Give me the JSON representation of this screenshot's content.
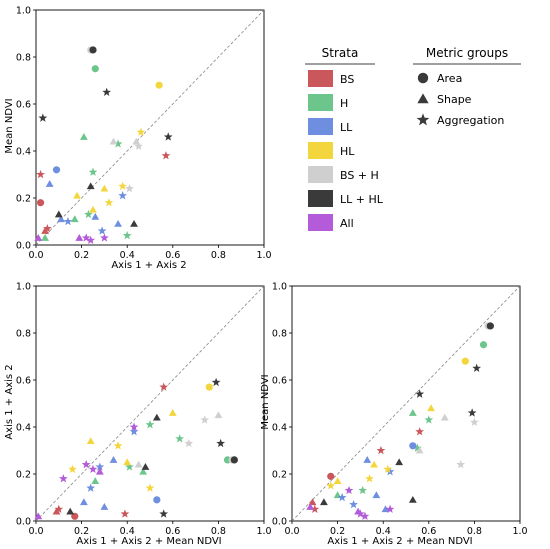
{
  "legend": {
    "strata_title": "Strata",
    "metric_title": "Metric groups",
    "strata": [
      {
        "key": "BS",
        "label": "BS",
        "color": "#c9575b"
      },
      {
        "key": "H",
        "label": "H",
        "color": "#6cc68b"
      },
      {
        "key": "LL",
        "label": "LL",
        "color": "#6e8ee0"
      },
      {
        "key": "HL",
        "label": "HL",
        "color": "#f3d63e"
      },
      {
        "key": "BSH",
        "label": "BS + H",
        "color": "#cfcfcf"
      },
      {
        "key": "LLHL",
        "label": "LL + HL",
        "color": "#3a3a3a"
      },
      {
        "key": "All",
        "label": "All",
        "color": "#b35bd8"
      }
    ],
    "metrics": [
      {
        "key": "area",
        "label": "Area",
        "icon": "circle-icon"
      },
      {
        "key": "shape",
        "label": "Shape",
        "icon": "triangle-icon"
      },
      {
        "key": "agg",
        "label": "Aggregation",
        "icon": "star-icon"
      }
    ]
  },
  "chart_data": [
    {
      "type": "scatter",
      "id": "panel-1",
      "xlabel": "Axis 1 + Axis 2",
      "ylabel": "Mean NDVI",
      "xlim": [
        0,
        1
      ],
      "ylim": [
        0,
        1
      ],
      "ticks": [
        "0.0",
        "0.2",
        "0.4",
        "0.6",
        "0.8",
        "1.0"
      ],
      "identity_line": true,
      "points": [
        {
          "s": "BS",
          "m": "area",
          "x": 0.02,
          "y": 0.18
        },
        {
          "s": "BS",
          "m": "agg",
          "x": 0.02,
          "y": 0.3
        },
        {
          "s": "BS",
          "m": "agg",
          "x": 0.05,
          "y": 0.07
        },
        {
          "s": "BS",
          "m": "agg",
          "x": 0.57,
          "y": 0.38
        },
        {
          "s": "BS",
          "m": "shape",
          "x": 0.04,
          "y": 0.06
        },
        {
          "s": "H",
          "m": "area",
          "x": 0.26,
          "y": 0.75
        },
        {
          "s": "H",
          "m": "shape",
          "x": 0.21,
          "y": 0.46
        },
        {
          "s": "H",
          "m": "shape",
          "x": 0.17,
          "y": 0.11
        },
        {
          "s": "H",
          "m": "shape",
          "x": 0.04,
          "y": 0.03
        },
        {
          "s": "H",
          "m": "agg",
          "x": 0.25,
          "y": 0.31
        },
        {
          "s": "H",
          "m": "agg",
          "x": 0.36,
          "y": 0.43
        },
        {
          "s": "H",
          "m": "agg",
          "x": 0.4,
          "y": 0.04
        },
        {
          "s": "H",
          "m": "agg",
          "x": 0.23,
          "y": 0.13
        },
        {
          "s": "LL",
          "m": "area",
          "x": 0.09,
          "y": 0.32
        },
        {
          "s": "LL",
          "m": "shape",
          "x": 0.06,
          "y": 0.26
        },
        {
          "s": "LL",
          "m": "shape",
          "x": 0.11,
          "y": 0.11
        },
        {
          "s": "LL",
          "m": "shape",
          "x": 0.26,
          "y": 0.12
        },
        {
          "s": "LL",
          "m": "shape",
          "x": 0.36,
          "y": 0.09
        },
        {
          "s": "LL",
          "m": "agg",
          "x": 0.14,
          "y": 0.1
        },
        {
          "s": "LL",
          "m": "agg",
          "x": 0.38,
          "y": 0.21
        },
        {
          "s": "LL",
          "m": "agg",
          "x": 0.29,
          "y": 0.06
        },
        {
          "s": "HL",
          "m": "area",
          "x": 0.54,
          "y": 0.68
        },
        {
          "s": "HL",
          "m": "shape",
          "x": 0.3,
          "y": 0.24
        },
        {
          "s": "HL",
          "m": "shape",
          "x": 0.25,
          "y": 0.15
        },
        {
          "s": "HL",
          "m": "shape",
          "x": 0.18,
          "y": 0.21
        },
        {
          "s": "HL",
          "m": "agg",
          "x": 0.38,
          "y": 0.25
        },
        {
          "s": "HL",
          "m": "agg",
          "x": 0.32,
          "y": 0.18
        },
        {
          "s": "HL",
          "m": "agg",
          "x": 0.46,
          "y": 0.48
        },
        {
          "s": "BSH",
          "m": "area",
          "x": 0.24,
          "y": 0.83
        },
        {
          "s": "BSH",
          "m": "shape",
          "x": 0.44,
          "y": 0.44
        },
        {
          "s": "BSH",
          "m": "shape",
          "x": 0.34,
          "y": 0.44
        },
        {
          "s": "BSH",
          "m": "agg",
          "x": 0.41,
          "y": 0.24
        },
        {
          "s": "BSH",
          "m": "agg",
          "x": 0.45,
          "y": 0.42
        },
        {
          "s": "LLHL",
          "m": "area",
          "x": 0.25,
          "y": 0.83
        },
        {
          "s": "LLHL",
          "m": "shape",
          "x": 0.24,
          "y": 0.25
        },
        {
          "s": "LLHL",
          "m": "shape",
          "x": 0.43,
          "y": 0.09
        },
        {
          "s": "LLHL",
          "m": "shape",
          "x": 0.1,
          "y": 0.13
        },
        {
          "s": "LLHL",
          "m": "agg",
          "x": 0.03,
          "y": 0.54
        },
        {
          "s": "LLHL",
          "m": "agg",
          "x": 0.31,
          "y": 0.65
        },
        {
          "s": "LLHL",
          "m": "agg",
          "x": 0.58,
          "y": 0.46
        },
        {
          "s": "All",
          "m": "shape",
          "x": 0.19,
          "y": 0.03
        },
        {
          "s": "All",
          "m": "shape",
          "x": 0.01,
          "y": 0.03
        },
        {
          "s": "All",
          "m": "agg",
          "x": 0.22,
          "y": 0.03
        },
        {
          "s": "All",
          "m": "agg",
          "x": 0.24,
          "y": 0.02
        },
        {
          "s": "All",
          "m": "agg",
          "x": 0.3,
          "y": 0.03
        }
      ]
    },
    {
      "type": "scatter",
      "id": "panel-2",
      "xlabel": "Axis 1 + Axis 2 + Mean NDVI",
      "ylabel": "Axis 1 + Axis 2",
      "xlim": [
        0,
        1
      ],
      "ylim": [
        0,
        1
      ],
      "ticks": [
        "0.0",
        "0.2",
        "0.4",
        "0.6",
        "0.8",
        "1.0"
      ],
      "identity_line": true,
      "points": [
        {
          "s": "BS",
          "m": "area",
          "x": 0.17,
          "y": 0.02
        },
        {
          "s": "BS",
          "m": "agg",
          "x": 0.56,
          "y": 0.57
        },
        {
          "s": "BS",
          "m": "agg",
          "x": 0.39,
          "y": 0.03
        },
        {
          "s": "BS",
          "m": "agg",
          "x": 0.1,
          "y": 0.05
        },
        {
          "s": "BS",
          "m": "shape",
          "x": 0.09,
          "y": 0.04
        },
        {
          "s": "H",
          "m": "area",
          "x": 0.84,
          "y": 0.26
        },
        {
          "s": "H",
          "m": "shape",
          "x": 0.47,
          "y": 0.21
        },
        {
          "s": "H",
          "m": "shape",
          "x": 0.26,
          "y": 0.17
        },
        {
          "s": "H",
          "m": "agg",
          "x": 0.5,
          "y": 0.41
        },
        {
          "s": "H",
          "m": "agg",
          "x": 0.63,
          "y": 0.35
        },
        {
          "s": "H",
          "m": "agg",
          "x": 0.41,
          "y": 0.23
        },
        {
          "s": "LL",
          "m": "area",
          "x": 0.53,
          "y": 0.09
        },
        {
          "s": "LL",
          "m": "shape",
          "x": 0.21,
          "y": 0.08
        },
        {
          "s": "LL",
          "m": "shape",
          "x": 0.3,
          "y": 0.06
        },
        {
          "s": "LL",
          "m": "shape",
          "x": 0.34,
          "y": 0.26
        },
        {
          "s": "LL",
          "m": "agg",
          "x": 0.24,
          "y": 0.14
        },
        {
          "s": "LL",
          "m": "agg",
          "x": 0.43,
          "y": 0.38
        },
        {
          "s": "LL",
          "m": "agg",
          "x": 0.28,
          "y": 0.23
        },
        {
          "s": "HL",
          "m": "area",
          "x": 0.76,
          "y": 0.57
        },
        {
          "s": "HL",
          "m": "shape",
          "x": 0.24,
          "y": 0.34
        },
        {
          "s": "HL",
          "m": "shape",
          "x": 0.4,
          "y": 0.25
        },
        {
          "s": "HL",
          "m": "shape",
          "x": 0.6,
          "y": 0.46
        },
        {
          "s": "HL",
          "m": "agg",
          "x": 0.36,
          "y": 0.32
        },
        {
          "s": "HL",
          "m": "agg",
          "x": 0.16,
          "y": 0.22
        },
        {
          "s": "HL",
          "m": "agg",
          "x": 0.5,
          "y": 0.14
        },
        {
          "s": "BSH",
          "m": "area",
          "x": 0.86,
          "y": 0.26
        },
        {
          "s": "BSH",
          "m": "shape",
          "x": 0.8,
          "y": 0.45
        },
        {
          "s": "BSH",
          "m": "shape",
          "x": 0.45,
          "y": 0.24
        },
        {
          "s": "BSH",
          "m": "agg",
          "x": 0.74,
          "y": 0.43
        },
        {
          "s": "BSH",
          "m": "agg",
          "x": 0.67,
          "y": 0.33
        },
        {
          "s": "LLHL",
          "m": "area",
          "x": 0.87,
          "y": 0.26
        },
        {
          "s": "LLHL",
          "m": "shape",
          "x": 0.53,
          "y": 0.44
        },
        {
          "s": "LLHL",
          "m": "shape",
          "x": 0.15,
          "y": 0.04
        },
        {
          "s": "LLHL",
          "m": "shape",
          "x": 0.48,
          "y": 0.23
        },
        {
          "s": "LLHL",
          "m": "agg",
          "x": 0.79,
          "y": 0.59
        },
        {
          "s": "LLHL",
          "m": "agg",
          "x": 0.81,
          "y": 0.33
        },
        {
          "s": "LLHL",
          "m": "agg",
          "x": 0.56,
          "y": 0.03
        },
        {
          "s": "All",
          "m": "shape",
          "x": 0.01,
          "y": 0.02
        },
        {
          "s": "All",
          "m": "shape",
          "x": 0.28,
          "y": 0.21
        },
        {
          "s": "All",
          "m": "agg",
          "x": 0.12,
          "y": 0.18
        },
        {
          "s": "All",
          "m": "agg",
          "x": 0.22,
          "y": 0.24
        },
        {
          "s": "All",
          "m": "agg",
          "x": 0.25,
          "y": 0.22
        },
        {
          "s": "All",
          "m": "agg",
          "x": 0.43,
          "y": 0.4
        }
      ]
    },
    {
      "type": "scatter",
      "id": "panel-3",
      "xlabel": "Axis 1 + Axis 2 + Mean NDVI",
      "ylabel": "Mean NDVI",
      "xlim": [
        0,
        1
      ],
      "ylim": [
        0,
        1
      ],
      "ticks": [
        "0.0",
        "0.2",
        "0.4",
        "0.6",
        "0.8",
        "1.0"
      ],
      "identity_line": true,
      "points": [
        {
          "s": "BS",
          "m": "area",
          "x": 0.17,
          "y": 0.19
        },
        {
          "s": "BS",
          "m": "agg",
          "x": 0.56,
          "y": 0.38
        },
        {
          "s": "BS",
          "m": "agg",
          "x": 0.39,
          "y": 0.3
        },
        {
          "s": "BS",
          "m": "agg",
          "x": 0.1,
          "y": 0.05
        },
        {
          "s": "BS",
          "m": "shape",
          "x": 0.09,
          "y": 0.08
        },
        {
          "s": "H",
          "m": "area",
          "x": 0.84,
          "y": 0.75
        },
        {
          "s": "H",
          "m": "shape",
          "x": 0.53,
          "y": 0.46
        },
        {
          "s": "H",
          "m": "shape",
          "x": 0.2,
          "y": 0.11
        },
        {
          "s": "H",
          "m": "agg",
          "x": 0.6,
          "y": 0.43
        },
        {
          "s": "H",
          "m": "agg",
          "x": 0.55,
          "y": 0.31
        },
        {
          "s": "H",
          "m": "agg",
          "x": 0.31,
          "y": 0.13
        },
        {
          "s": "LL",
          "m": "area",
          "x": 0.53,
          "y": 0.32
        },
        {
          "s": "LL",
          "m": "shape",
          "x": 0.33,
          "y": 0.26
        },
        {
          "s": "LL",
          "m": "shape",
          "x": 0.37,
          "y": 0.11
        },
        {
          "s": "LL",
          "m": "shape",
          "x": 0.41,
          "y": 0.05
        },
        {
          "s": "LL",
          "m": "agg",
          "x": 0.22,
          "y": 0.1
        },
        {
          "s": "LL",
          "m": "agg",
          "x": 0.43,
          "y": 0.21
        },
        {
          "s": "LL",
          "m": "agg",
          "x": 0.27,
          "y": 0.07
        },
        {
          "s": "HL",
          "m": "area",
          "x": 0.76,
          "y": 0.68
        },
        {
          "s": "HL",
          "m": "shape",
          "x": 0.61,
          "y": 0.48
        },
        {
          "s": "HL",
          "m": "shape",
          "x": 0.36,
          "y": 0.24
        },
        {
          "s": "HL",
          "m": "shape",
          "x": 0.2,
          "y": 0.17
        },
        {
          "s": "HL",
          "m": "agg",
          "x": 0.42,
          "y": 0.22
        },
        {
          "s": "HL",
          "m": "agg",
          "x": 0.17,
          "y": 0.15
        },
        {
          "s": "HL",
          "m": "agg",
          "x": 0.34,
          "y": 0.18
        },
        {
          "s": "BSH",
          "m": "area",
          "x": 0.86,
          "y": 0.83
        },
        {
          "s": "BSH",
          "m": "shape",
          "x": 0.67,
          "y": 0.44
        },
        {
          "s": "BSH",
          "m": "shape",
          "x": 0.56,
          "y": 0.3
        },
        {
          "s": "BSH",
          "m": "agg",
          "x": 0.74,
          "y": 0.24
        },
        {
          "s": "BSH",
          "m": "agg",
          "x": 0.8,
          "y": 0.42
        },
        {
          "s": "LLHL",
          "m": "area",
          "x": 0.87,
          "y": 0.83
        },
        {
          "s": "LLHL",
          "m": "shape",
          "x": 0.47,
          "y": 0.25
        },
        {
          "s": "LLHL",
          "m": "shape",
          "x": 0.53,
          "y": 0.09
        },
        {
          "s": "LLHL",
          "m": "shape",
          "x": 0.14,
          "y": 0.08
        },
        {
          "s": "LLHL",
          "m": "agg",
          "x": 0.56,
          "y": 0.54
        },
        {
          "s": "LLHL",
          "m": "agg",
          "x": 0.81,
          "y": 0.65
        },
        {
          "s": "LLHL",
          "m": "agg",
          "x": 0.79,
          "y": 0.46
        },
        {
          "s": "All",
          "m": "shape",
          "x": 0.08,
          "y": 0.06
        },
        {
          "s": "All",
          "m": "shape",
          "x": 0.29,
          "y": 0.04
        },
        {
          "s": "All",
          "m": "agg",
          "x": 0.3,
          "y": 0.03
        },
        {
          "s": "All",
          "m": "agg",
          "x": 0.32,
          "y": 0.02
        },
        {
          "s": "All",
          "m": "agg",
          "x": 0.43,
          "y": 0.05
        },
        {
          "s": "All",
          "m": "agg",
          "x": 0.25,
          "y": 0.13
        }
      ]
    }
  ]
}
